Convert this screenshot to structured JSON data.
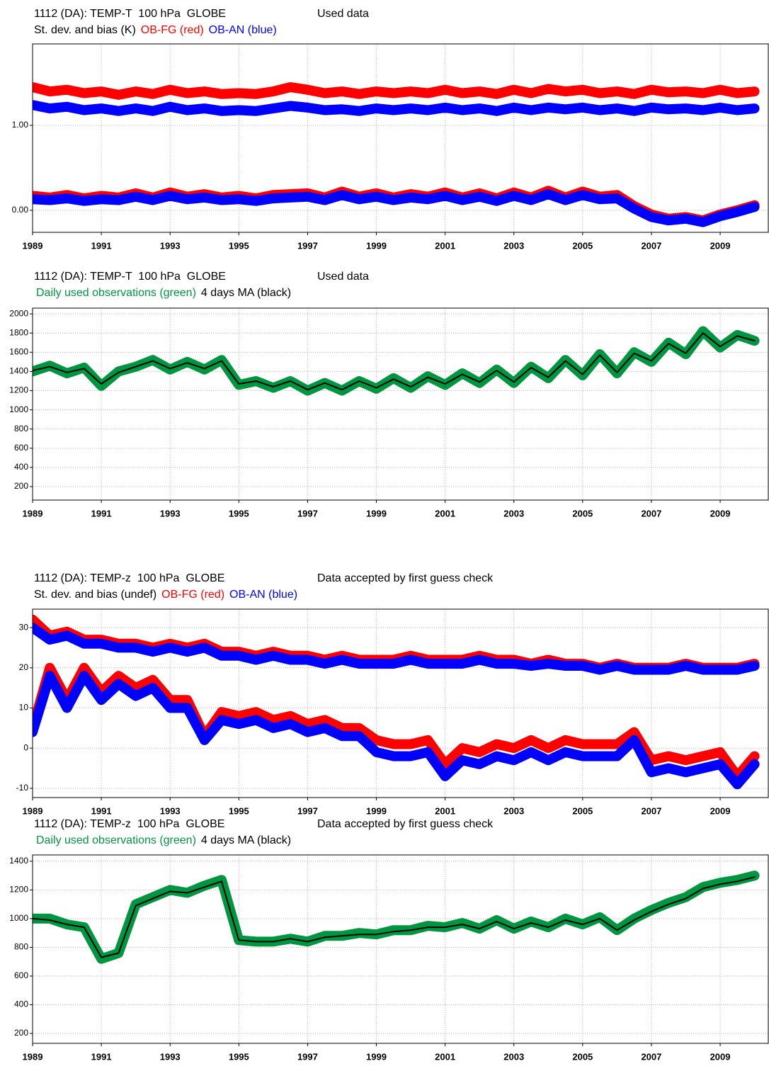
{
  "chart_data": [
    {
      "type": "line",
      "title": "1112 (DA): TEMP-T  100 hPa  GLOBE",
      "subtitle": "Used data",
      "ylabel": "St. dev. and bias (K)",
      "x": [
        1989,
        1989.5,
        1990,
        1990.5,
        1991,
        1991.5,
        1992,
        1992.5,
        1993,
        1993.5,
        1994,
        1994.5,
        1995,
        1995.5,
        1996,
        1996.5,
        1997,
        1997.5,
        1998,
        1998.5,
        1999,
        1999.5,
        2000,
        2000.5,
        2001,
        2001.5,
        2002,
        2002.5,
        2003,
        2003.5,
        2004,
        2004.5,
        2005,
        2005.5,
        2006,
        2006.5,
        2007,
        2007.5,
        2008,
        2008.5,
        2009,
        2009.5,
        2010
      ],
      "xlim": [
        1989,
        2010.4
      ],
      "xticks": [
        1989,
        1991,
        1993,
        1995,
        1997,
        1999,
        2001,
        2003,
        2005,
        2007,
        2009
      ],
      "ylim": [
        -0.26,
        1.96
      ],
      "yticks": [
        {
          "value": 0,
          "label": "0.00"
        },
        {
          "value": 1,
          "label": "1.00"
        }
      ],
      "grid": true,
      "series": [
        {
          "name": "OB-FG (red)",
          "color": "#ff0000",
          "values": [
            1.45,
            1.4,
            1.42,
            1.38,
            1.4,
            1.36,
            1.4,
            1.37,
            1.42,
            1.38,
            1.4,
            1.37,
            1.38,
            1.37,
            1.4,
            1.45,
            1.42,
            1.38,
            1.4,
            1.37,
            1.4,
            1.38,
            1.4,
            1.38,
            1.42,
            1.38,
            1.4,
            1.37,
            1.42,
            1.38,
            1.43,
            1.4,
            1.42,
            1.38,
            1.4,
            1.37,
            1.42,
            1.39,
            1.4,
            1.38,
            1.42,
            1.38,
            1.4
          ],
          "bias": [
            0.17,
            0.15,
            0.18,
            0.14,
            0.17,
            0.15,
            0.2,
            0.15,
            0.21,
            0.16,
            0.19,
            0.15,
            0.17,
            0.14,
            0.18,
            0.19,
            0.2,
            0.15,
            0.22,
            0.16,
            0.2,
            0.15,
            0.19,
            0.16,
            0.21,
            0.15,
            0.2,
            0.14,
            0.21,
            0.15,
            0.23,
            0.15,
            0.22,
            0.16,
            0.18,
            0.05,
            -0.05,
            -0.1,
            -0.08,
            -0.12,
            -0.05,
            0.0,
            0.06
          ]
        },
        {
          "name": "OB-AN (blue)",
          "color": "#0000ff",
          "values": [
            1.24,
            1.2,
            1.22,
            1.18,
            1.2,
            1.17,
            1.2,
            1.17,
            1.22,
            1.18,
            1.2,
            1.17,
            1.18,
            1.17,
            1.2,
            1.23,
            1.21,
            1.18,
            1.19,
            1.17,
            1.2,
            1.18,
            1.2,
            1.18,
            1.21,
            1.18,
            1.2,
            1.17,
            1.21,
            1.18,
            1.21,
            1.19,
            1.21,
            1.18,
            1.2,
            1.17,
            1.21,
            1.19,
            1.2,
            1.18,
            1.21,
            1.18,
            1.2
          ],
          "bias": [
            0.13,
            0.12,
            0.14,
            0.11,
            0.13,
            0.12,
            0.16,
            0.12,
            0.17,
            0.13,
            0.15,
            0.12,
            0.13,
            0.11,
            0.14,
            0.15,
            0.16,
            0.12,
            0.18,
            0.13,
            0.16,
            0.12,
            0.15,
            0.13,
            0.17,
            0.12,
            0.16,
            0.11,
            0.17,
            0.12,
            0.19,
            0.12,
            0.18,
            0.13,
            0.14,
            0.02,
            -0.08,
            -0.12,
            -0.1,
            -0.14,
            -0.07,
            -0.02,
            0.04
          ]
        }
      ]
    },
    {
      "type": "line",
      "title": "1112 (DA): TEMP-T  100 hPa  GLOBE",
      "subtitle": "Used data",
      "x": [
        1989,
        1989.5,
        1990,
        1990.5,
        1991,
        1991.5,
        1992,
        1992.5,
        1993,
        1993.5,
        1994,
        1994.5,
        1995,
        1995.5,
        1996,
        1996.5,
        1997,
        1997.5,
        1998,
        1998.5,
        1999,
        1999.5,
        2000,
        2000.5,
        2001,
        2001.5,
        2002,
        2002.5,
        2003,
        2003.5,
        2004,
        2004.5,
        2005,
        2005.5,
        2006,
        2006.5,
        2007,
        2007.5,
        2008,
        2008.5,
        2009,
        2009.5,
        2010
      ],
      "xlim": [
        1989,
        2010.4
      ],
      "xticks": [
        1989,
        1991,
        1993,
        1995,
        1997,
        1999,
        2001,
        2003,
        2005,
        2007,
        2009
      ],
      "ylim": [
        60,
        2060
      ],
      "yticks": [
        200,
        400,
        600,
        800,
        1000,
        1200,
        1400,
        1600,
        1800,
        2000
      ],
      "grid": true,
      "series": [
        {
          "name": "Daily used observations (green)",
          "color": "#009640",
          "values": [
            1400,
            1460,
            1380,
            1440,
            1250,
            1400,
            1450,
            1520,
            1420,
            1500,
            1420,
            1520,
            1260,
            1300,
            1230,
            1300,
            1200,
            1280,
            1200,
            1300,
            1220,
            1330,
            1230,
            1350,
            1260,
            1380,
            1280,
            1420,
            1280,
            1450,
            1330,
            1520,
            1360,
            1580,
            1380,
            1600,
            1500,
            1700,
            1580,
            1820,
            1650,
            1780,
            1720
          ]
        },
        {
          "name": "4 days MA (black)",
          "color": "#000000",
          "values": [
            1410,
            1450,
            1390,
            1430,
            1270,
            1390,
            1450,
            1510,
            1430,
            1490,
            1430,
            1510,
            1270,
            1300,
            1240,
            1300,
            1210,
            1280,
            1210,
            1300,
            1230,
            1320,
            1240,
            1340,
            1270,
            1370,
            1290,
            1410,
            1290,
            1440,
            1340,
            1510,
            1370,
            1570,
            1390,
            1590,
            1510,
            1690,
            1590,
            1800,
            1660,
            1770,
            1720
          ]
        }
      ]
    },
    {
      "type": "line",
      "title": "1112 (DA): TEMP-z  100 hPa  GLOBE",
      "subtitle": "Data accepted by first guess check",
      "ylabel": "St. dev. and bias (undef)",
      "x": [
        1989,
        1989.5,
        1990,
        1990.5,
        1991,
        1991.5,
        1992,
        1992.5,
        1993,
        1993.5,
        1994,
        1994.5,
        1995,
        1995.5,
        1996,
        1996.5,
        1997,
        1997.5,
        1998,
        1998.5,
        1999,
        1999.5,
        2000,
        2000.5,
        2001,
        2001.5,
        2002,
        2002.5,
        2003,
        2003.5,
        2004,
        2004.5,
        2005,
        2005.5,
        2006,
        2006.5,
        2007,
        2007.5,
        2008,
        2008.5,
        2009,
        2009.5,
        2010
      ],
      "xlim": [
        1989,
        2010.4
      ],
      "xticks": [
        1989,
        1991,
        1993,
        1995,
        1997,
        1999,
        2001,
        2003,
        2005,
        2007,
        2009
      ],
      "ylim": [
        -12.3,
        34.6
      ],
      "yticks": [
        -10,
        0,
        10,
        20,
        30
      ],
      "grid": true,
      "series": [
        {
          "name": "OB-FG (red)",
          "color": "#ff0000",
          "values": [
            32,
            28,
            29,
            27,
            27,
            26,
            26,
            25,
            26,
            25,
            26,
            24,
            24,
            23,
            24,
            23,
            23,
            22,
            23,
            22,
            22,
            22,
            23,
            22,
            22,
            22,
            23,
            22,
            22,
            21,
            22,
            21,
            21,
            20,
            21,
            20,
            20,
            20,
            21,
            20,
            20,
            20,
            21
          ],
          "bias": [
            5,
            20,
            12,
            20,
            14,
            18,
            15,
            17,
            12,
            12,
            3,
            9,
            8,
            9,
            7,
            8,
            6,
            7,
            5,
            5,
            2,
            1,
            1,
            2,
            -4,
            0,
            -1,
            1,
            0,
            2,
            0,
            2,
            1,
            1,
            1,
            4,
            -3,
            -2,
            -3,
            -2,
            -1,
            -7,
            -2
          ]
        },
        {
          "name": "OB-AN (blue)",
          "color": "#0000ff",
          "values": [
            30,
            27,
            28,
            26,
            26,
            25,
            25,
            24,
            25,
            24,
            25,
            23,
            23,
            22,
            23,
            22,
            22,
            21,
            22,
            21,
            21,
            21,
            22,
            21,
            21,
            21,
            22,
            21,
            21,
            20.5,
            21,
            20.5,
            20.5,
            19.5,
            20.5,
            19.5,
            19.5,
            19.5,
            20.5,
            19.5,
            19.5,
            19.5,
            20.5
          ],
          "bias": [
            4,
            18,
            10,
            18,
            12,
            16,
            13,
            15,
            10,
            10,
            2,
            7,
            6,
            7,
            5,
            6,
            4,
            5,
            3,
            3,
            -1,
            -2,
            -2,
            -1,
            -7,
            -3,
            -4,
            -2,
            -3,
            -1,
            -3,
            -1,
            -2,
            -2,
            -2,
            2,
            -6,
            -5,
            -6,
            -5,
            -4,
            -9,
            -4
          ]
        }
      ]
    },
    {
      "type": "line",
      "title": "1112 (DA): TEMP-z  100 hPa  GLOBE",
      "subtitle": "Data accepted by first guess check",
      "x": [
        1989,
        1989.5,
        1990,
        1990.5,
        1991,
        1991.5,
        1992,
        1992.5,
        1993,
        1993.5,
        1994,
        1994.5,
        1995,
        1995.5,
        1996,
        1996.5,
        1997,
        1997.5,
        1998,
        1998.5,
        1999,
        1999.5,
        2000,
        2000.5,
        2001,
        2001.5,
        2002,
        2002.5,
        2003,
        2003.5,
        2004,
        2004.5,
        2005,
        2005.5,
        2006,
        2006.5,
        2007,
        2007.5,
        2008,
        2008.5,
        2009,
        2009.5,
        2010
      ],
      "xlim": [
        1989,
        2010.4
      ],
      "xticks": [
        1989,
        1991,
        1993,
        1995,
        1997,
        1999,
        2001,
        2003,
        2005,
        2007,
        2009
      ],
      "ylim": [
        131,
        1444
      ],
      "yticks": [
        200,
        400,
        600,
        800,
        1000,
        1200,
        1400
      ],
      "grid": true,
      "series": [
        {
          "name": "Daily used observations (green)",
          "color": "#009640",
          "values": [
            1000,
            1000,
            960,
            940,
            720,
            760,
            1100,
            1150,
            1200,
            1180,
            1230,
            1270,
            850,
            840,
            840,
            860,
            840,
            880,
            880,
            900,
            890,
            920,
            920,
            950,
            940,
            970,
            930,
            990,
            930,
            980,
            940,
            1000,
            960,
            1010,
            920,
            1000,
            1060,
            1110,
            1150,
            1220,
            1250,
            1270,
            1300
          ]
        },
        {
          "name": "4 days MA (black)",
          "color": "#000000",
          "values": [
            1000,
            990,
            960,
            940,
            730,
            760,
            1090,
            1140,
            1190,
            1180,
            1220,
            1260,
            850,
            840,
            840,
            860,
            840,
            870,
            880,
            890,
            890,
            910,
            920,
            940,
            940,
            960,
            930,
            980,
            930,
            970,
            940,
            990,
            960,
            1000,
            920,
            990,
            1050,
            1100,
            1140,
            1210,
            1240,
            1260,
            1290
          ]
        }
      ]
    }
  ]
}
